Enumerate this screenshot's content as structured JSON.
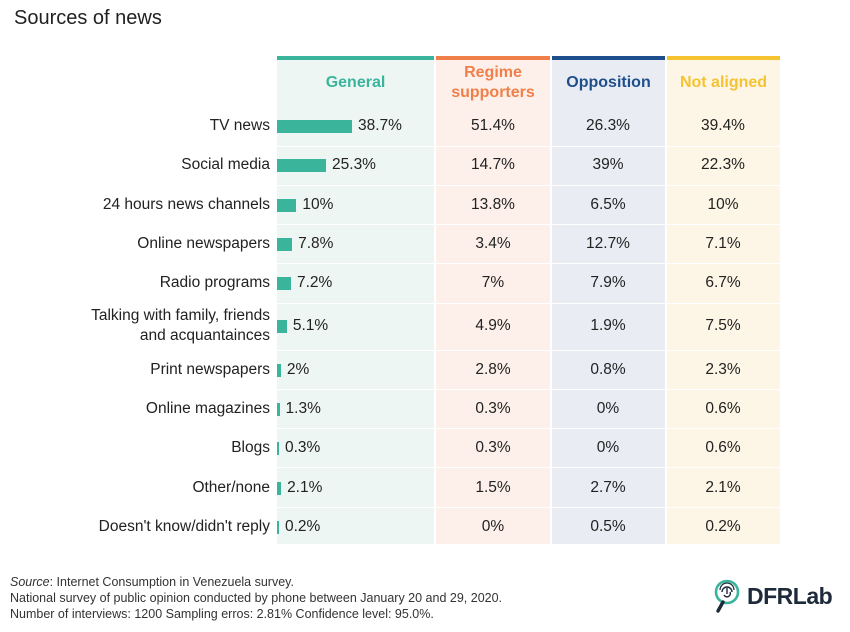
{
  "title": "Sources of news",
  "colors": {
    "general": "#3ab59c",
    "regime": "#f07f4a",
    "opposition": "#1e4f8c",
    "not_aligned": "#f5c230",
    "general_bg": "#eef6f4",
    "regime_bg": "#fdf0ea",
    "opposition_bg": "#e9ecf3",
    "not_aligned_bg": "#fdf6e6"
  },
  "columns": {
    "general": "General",
    "regime_1": "Regime",
    "regime_2": "supporters",
    "opposition": "Opposition",
    "not_aligned": "Not aligned"
  },
  "chart_data": {
    "type": "table",
    "title": "Sources of news",
    "categories": [
      [
        "TV news"
      ],
      [
        "Social media"
      ],
      [
        "24 hours news channels"
      ],
      [
        "Online newspapers"
      ],
      [
        "Radio programs"
      ],
      [
        "Talking with family, friends",
        "and acquantainces"
      ],
      [
        "Print newspapers"
      ],
      [
        "Online magazines"
      ],
      [
        "Blogs"
      ],
      [
        "Other/none"
      ],
      [
        "Doesn't know/didn't reply"
      ]
    ],
    "series": [
      {
        "name": "General",
        "values": [
          38.7,
          25.3,
          10,
          7.8,
          7.2,
          5.1,
          2,
          1.3,
          0.3,
          2.1,
          0.2
        ],
        "labels": [
          "38.7%",
          "25.3%",
          "10%",
          "7.8%",
          "7.2%",
          "5.1%",
          "2%",
          "1.3%",
          "0.3%",
          "2.1%",
          "0.2%"
        ]
      },
      {
        "name": "Regime supporters",
        "values": [
          51.4,
          14.7,
          13.8,
          3.4,
          7,
          4.9,
          2.8,
          0.3,
          0.3,
          1.5,
          0
        ],
        "labels": [
          "51.4%",
          "14.7%",
          "13.8%",
          "3.4%",
          "7%",
          "4.9%",
          "2.8%",
          "0.3%",
          "0.3%",
          "1.5%",
          "0%"
        ]
      },
      {
        "name": "Opposition",
        "values": [
          26.3,
          39,
          6.5,
          12.7,
          7.9,
          1.9,
          0.8,
          0,
          0,
          2.7,
          0.5
        ],
        "labels": [
          "26.3%",
          "39%",
          "6.5%",
          "12.7%",
          "7.9%",
          "1.9%",
          "0.8%",
          "0%",
          "0%",
          "2.7%",
          "0.5%"
        ]
      },
      {
        "name": "Not aligned",
        "values": [
          39.4,
          22.3,
          10,
          7.1,
          6.7,
          7.5,
          2.3,
          0.6,
          0.6,
          2.1,
          0.2
        ],
        "labels": [
          "39.4%",
          "22.3%",
          "10%",
          "7.1%",
          "6.7%",
          "7.5%",
          "2.3%",
          "0.6%",
          "0.6%",
          "2.1%",
          "0.2%"
        ]
      }
    ]
  },
  "footer": {
    "source_label": "Source",
    "source_text": ": Internet Consumption in Venezuela survey.",
    "line2": "National survey of public opinion conducted by phone between January 20 and 29, 2020.",
    "line3": "Number of interviews: 1200 Sampling erros: 2.81% Confidence level: 95.0%."
  },
  "logo": {
    "text": "DFRLab",
    "icon": "fingerprint-magnifier-icon"
  }
}
